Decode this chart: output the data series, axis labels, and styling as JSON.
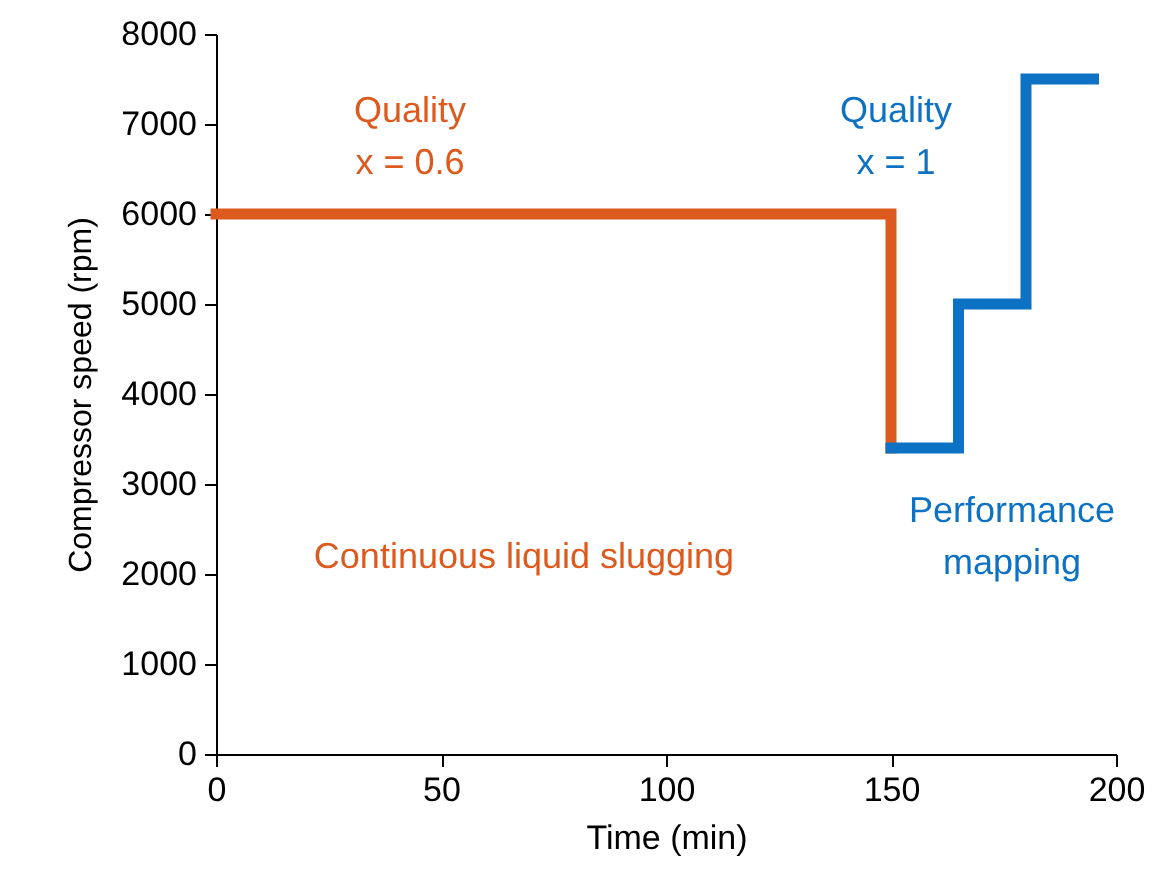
{
  "chart_data": {
    "type": "line",
    "xlabel": "Time  (min)",
    "ylabel": "Compressor speed  (rpm)",
    "xlim": [
      0,
      200
    ],
    "xticks": [
      0,
      50,
      100,
      150,
      200
    ],
    "ylim": [
      0,
      8000
    ],
    "yticks": [
      0,
      1000,
      2000,
      3000,
      4000,
      5000,
      6000,
      7000,
      8000
    ],
    "grid": false,
    "marker": "none",
    "line_style": "solid",
    "series": [
      {
        "color": "#dc5a1e",
        "x": [
          0,
          150,
          150
        ],
        "values": [
          6000,
          6000,
          3400
        ]
      },
      {
        "color": "#0e72c4",
        "x": [
          150,
          165,
          165,
          180,
          180,
          195
        ],
        "values": [
          3400,
          3400,
          5000,
          5000,
          7500,
          7500
        ]
      }
    ],
    "annotations": [
      "Quality\nx = 0.6",
      "Quality\nx = 1",
      "Continuous  liquid slugging",
      "Performance\nmapping"
    ]
  }
}
